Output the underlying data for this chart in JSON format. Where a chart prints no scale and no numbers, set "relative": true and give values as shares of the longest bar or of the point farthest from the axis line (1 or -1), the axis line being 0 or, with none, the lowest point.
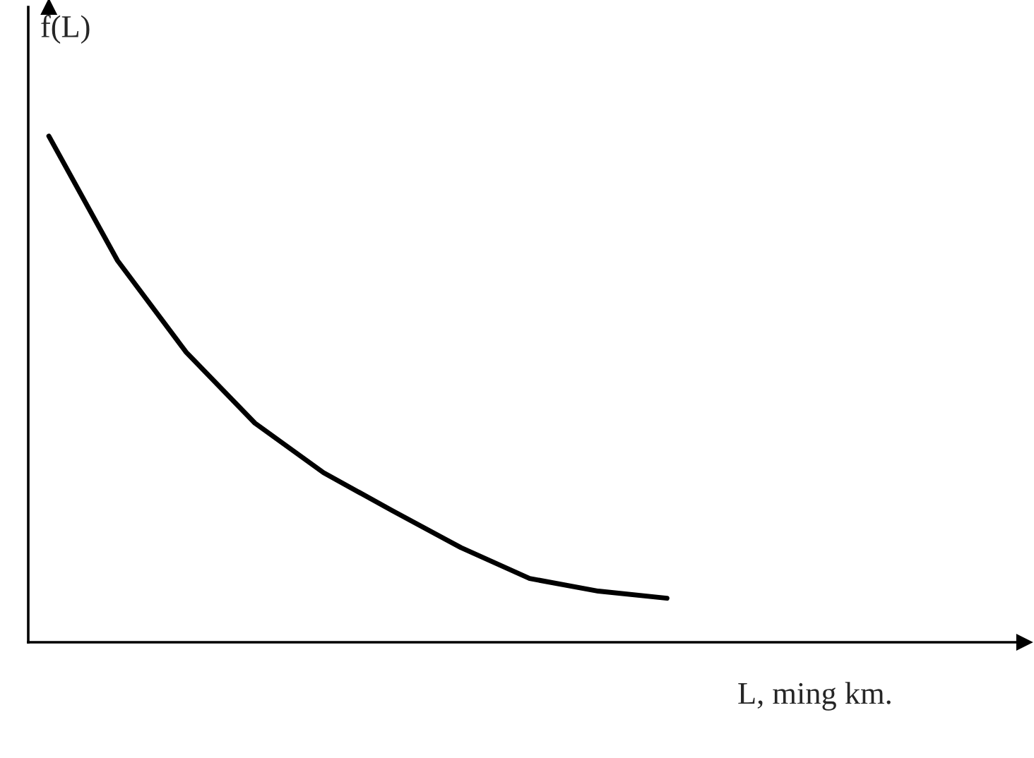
{
  "chart_data": {
    "type": "line",
    "relative": true,
    "xlabel": "L, ming km.",
    "ylabel": "f(L)",
    "categories": [
      null,
      null,
      null,
      null,
      null,
      null,
      null,
      null,
      null,
      null,
      null,
      null,
      null,
      null,
      null
    ],
    "series": [
      {
        "color": "#000000",
        "values": [
          1,
          0.754,
          0.573,
          0.433,
          0.335,
          0.26,
          0.187,
          0.126,
          0.101,
          0.087,
          null,
          null,
          null,
          null,
          null
        ]
      }
    ],
    "marker": "none",
    "line_style": "solid"
  }
}
